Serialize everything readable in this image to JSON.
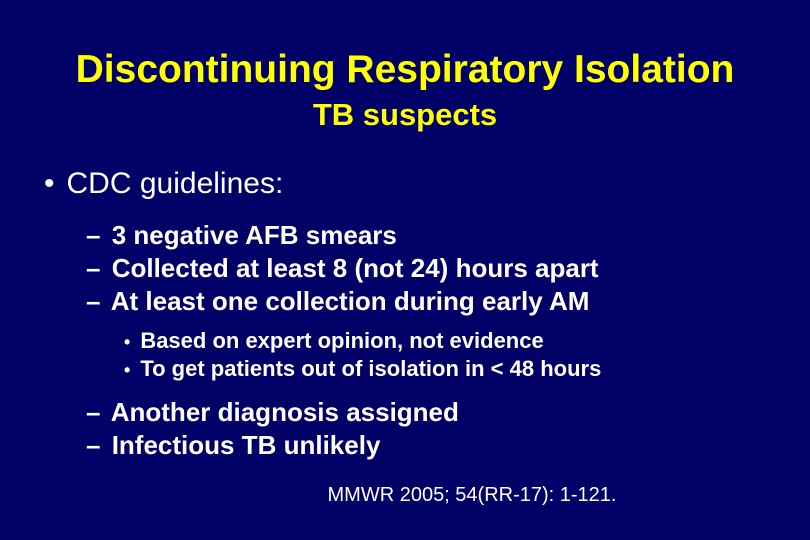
{
  "colors": {
    "background": "#000066",
    "title": "#ffff00",
    "text": "#ffffff"
  },
  "typography": {
    "font_family": "Arial",
    "title_fontsize": 39,
    "subtitle_fontsize": 31,
    "l1_fontsize": 30,
    "l2_fontsize": 26,
    "l3_fontsize": 22,
    "citation_fontsize": 20,
    "l2_weight": "bold",
    "l3_weight": "bold"
  },
  "title": "Discontinuing Respiratory Isolation",
  "subtitle": "TB suspects",
  "bullets": {
    "l1": "CDC guidelines:",
    "l2a": [
      "3 negative AFB smears",
      "Collected at least 8 (not 24) hours apart",
      "At least one collection during early AM"
    ],
    "l3": [
      "Based on expert opinion, not evidence",
      "To get patients out of isolation in < 48 hours"
    ],
    "l2b": [
      "Another diagnosis assigned",
      "Infectious TB unlikely"
    ]
  },
  "citation": "MMWR 2005; 54(RR-17): 1-121."
}
